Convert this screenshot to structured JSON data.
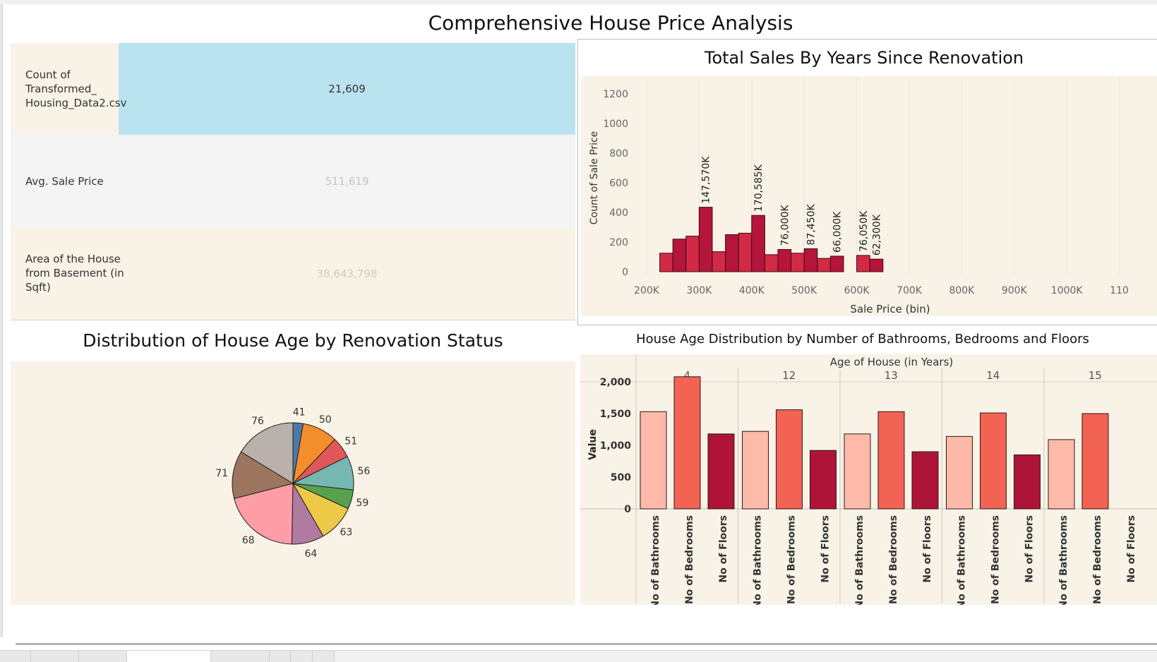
{
  "dashboard": {
    "title": "Comprehensive House Price Analysis"
  },
  "kpis": [
    {
      "label": "Count of Transformed_ Housing_Data2.csv",
      "label_lines": [
        "Count of",
        "Transformed_",
        "Housing_Data2.csv"
      ],
      "value": "21,609"
    },
    {
      "label": "Avg. Sale Price",
      "label_lines": [
        "Avg. Sale Price"
      ],
      "value": "511,619"
    },
    {
      "label": "Area of the House from Basement (in Sqft)",
      "label_lines": [
        "Area of the House",
        "from Basement (in",
        "Sqft)"
      ],
      "value": "38,643,798"
    }
  ],
  "colors": {
    "kpi_highlight": "#bae3f0",
    "panel_bg": "#f8f2e7",
    "kpi_gray": "#f4f4f4",
    "histogram_bar": "#b5153a",
    "histogram_bar_alt": "#d22a44",
    "bath": "#fdbaa9",
    "bed": "#f26353",
    "floors": "#ad1437"
  },
  "histogram": {
    "title": "Total Sales By Years Since Renovation",
    "chart_data": {
      "type": "bar",
      "title": "Total Sales By Years Since Renovation",
      "xlabel": "Sale Price (bin)",
      "ylabel": "Count of Sale Price",
      "x_ticks": [
        "200K",
        "300K",
        "400K",
        "500K",
        "600K",
        "700K",
        "800K",
        "900K",
        "1000K",
        "110"
      ],
      "y_ticks": [
        "0",
        "200",
        "400",
        "600",
        "800",
        "1000",
        "1200"
      ],
      "ylim": [
        0,
        1200
      ],
      "bin_width": 25000,
      "bins": [
        {
          "start": 225000,
          "value": 125
        },
        {
          "start": 250000,
          "value": 220
        },
        {
          "start": 275000,
          "value": 240
        },
        {
          "start": 300000,
          "value": 435,
          "label": "147,570K"
        },
        {
          "start": 325000,
          "value": 135
        },
        {
          "start": 350000,
          "value": 250
        },
        {
          "start": 375000,
          "value": 260
        },
        {
          "start": 400000,
          "value": 380,
          "label": "170,585K"
        },
        {
          "start": 425000,
          "value": 115
        },
        {
          "start": 450000,
          "value": 150,
          "label": "76,000K"
        },
        {
          "start": 475000,
          "value": 125
        },
        {
          "start": 500000,
          "value": 155,
          "label": "87,450K"
        },
        {
          "start": 525000,
          "value": 90
        },
        {
          "start": 550000,
          "value": 105,
          "label": "66,000K"
        },
        {
          "start": 600000,
          "value": 110,
          "label": "76,050K"
        },
        {
          "start": 625000,
          "value": 85,
          "label": "62,300K"
        }
      ],
      "grid": true
    }
  },
  "pie": {
    "title": "Distribution of House Age by Renovation Status",
    "chart_data": {
      "type": "pie",
      "slices": [
        {
          "label": "41",
          "value": 2.7,
          "color": "#4e79a7"
        },
        {
          "label": "50",
          "value": 9.4,
          "color": "#f28e2b"
        },
        {
          "label": "51",
          "value": 5.6,
          "color": "#e15759"
        },
        {
          "label": "56",
          "value": 9.0,
          "color": "#76b7b2"
        },
        {
          "label": "59",
          "value": 5.1,
          "color": "#59a14f"
        },
        {
          "label": "63",
          "value": 9.9,
          "color": "#edc948"
        },
        {
          "label": "64",
          "value": 8.6,
          "color": "#b07aa1"
        },
        {
          "label": "68",
          "value": 20.7,
          "color": "#ff9da7"
        },
        {
          "label": "71",
          "value": 12.7,
          "color": "#9c755f"
        },
        {
          "label": "76",
          "value": 16.3,
          "color": "#bab0ac"
        }
      ]
    }
  },
  "grouped": {
    "title": "House Age Distribution by Number of Bathrooms, Bedrooms and Floors",
    "chart_data": {
      "type": "bar",
      "title": "House Age Distribution by Number of Bathrooms, Bedrooms and Floors",
      "group_axis_label": "Age of House (in Years)",
      "ylabel": "Value",
      "y_ticks": [
        "0",
        "500",
        "1,000",
        "1,500",
        "2,000"
      ],
      "ylim": [
        0,
        2100
      ],
      "categories": [
        "No of Bathrooms",
        "No of Bedrooms",
        "No of Floors"
      ],
      "groups": [
        {
          "age": "4",
          "values": [
            1530,
            2080,
            1180
          ]
        },
        {
          "age": "12",
          "values": [
            1220,
            1560,
            920
          ]
        },
        {
          "age": "13",
          "values": [
            1180,
            1530,
            900
          ]
        },
        {
          "age": "14",
          "values": [
            1140,
            1510,
            850
          ]
        },
        {
          "age": "15",
          "values": [
            1090,
            1500,
            null
          ]
        }
      ]
    }
  }
}
